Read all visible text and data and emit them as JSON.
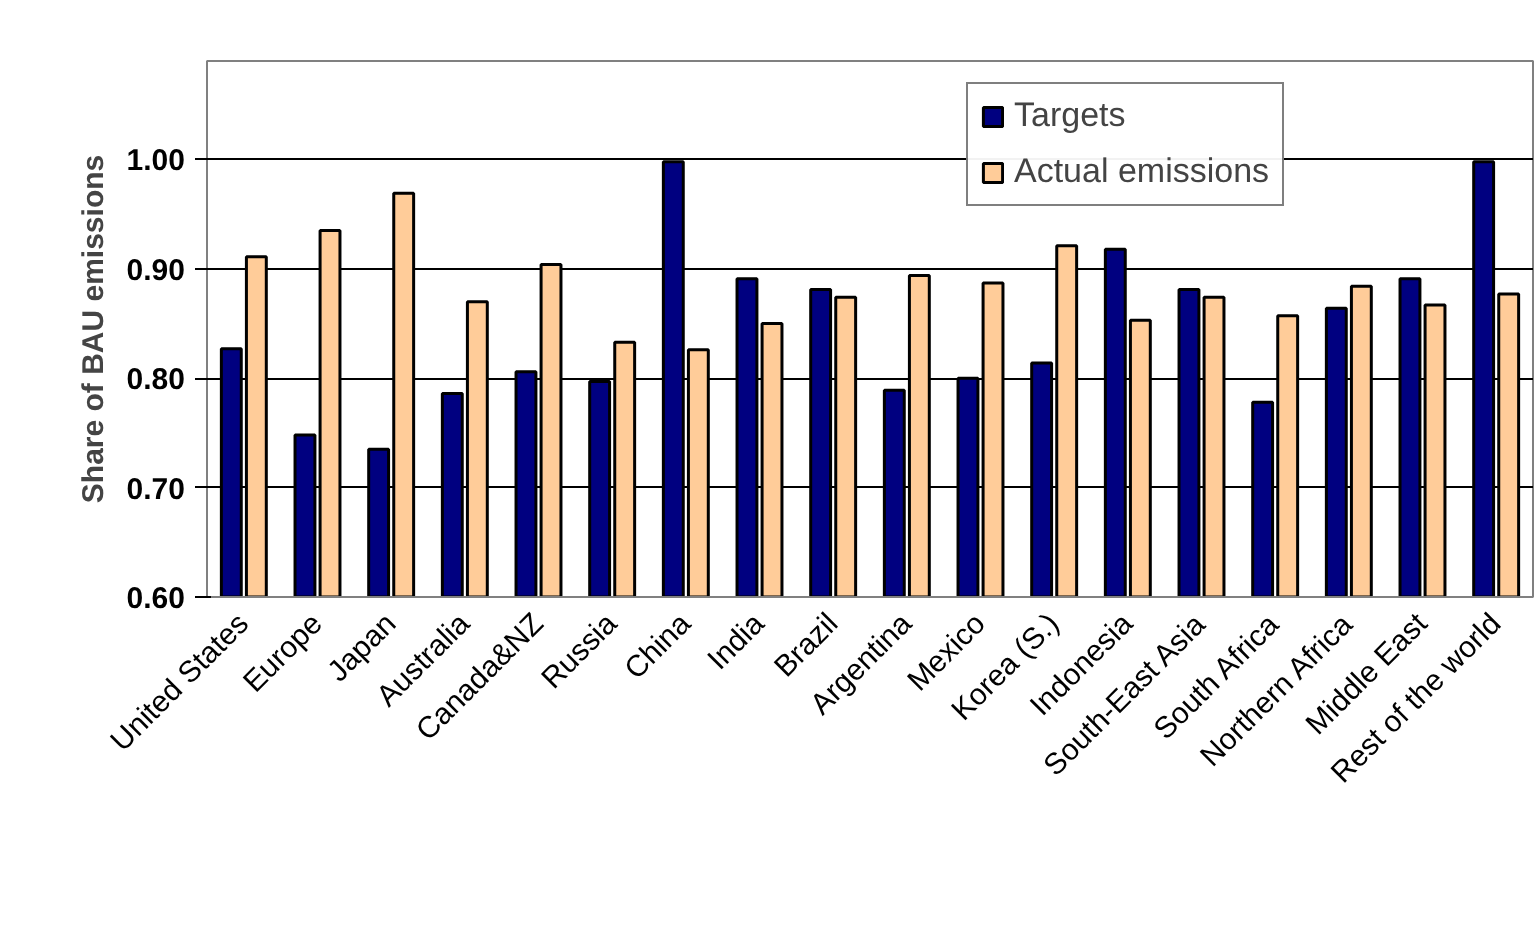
{
  "chart_data": {
    "type": "bar",
    "ylabel": "Share of BAU emissions",
    "categories": [
      "United States",
      "Europe",
      "Japan",
      "Australia",
      "Canada&NZ",
      "Russia",
      "China",
      "India",
      "Brazil",
      "Argentina",
      "Mexico",
      "Korea (S.)",
      "Indonesia",
      "South-East Asia",
      "South Africa",
      "Northern Africa",
      "Middle East",
      "Rest of the world"
    ],
    "series": [
      {
        "name": "Targets",
        "color": "#000080",
        "values": [
          0.827,
          0.748,
          0.735,
          0.786,
          0.806,
          0.797,
          0.998,
          0.891,
          0.881,
          0.789,
          0.8,
          0.814,
          0.918,
          0.881,
          0.778,
          0.864,
          0.891,
          0.998
        ]
      },
      {
        "name": "Actual emissions",
        "color": "#ffcc99",
        "values": [
          0.911,
          0.935,
          0.969,
          0.87,
          0.904,
          0.833,
          0.826,
          0.85,
          0.874,
          0.894,
          0.887,
          0.921,
          0.853,
          0.874,
          0.857,
          0.884,
          0.867,
          0.877
        ]
      }
    ],
    "ylim": [
      0.6,
      1.09
    ],
    "yticks": [
      {
        "value": 0.6,
        "label": "0.60"
      },
      {
        "value": 0.7,
        "label": "0.70"
      },
      {
        "value": 0.8,
        "label": "0.80"
      },
      {
        "value": 0.9,
        "label": "0.90"
      },
      {
        "value": 1.0,
        "label": "1.00"
      }
    ],
    "grid": "y",
    "legend": "top right"
  }
}
